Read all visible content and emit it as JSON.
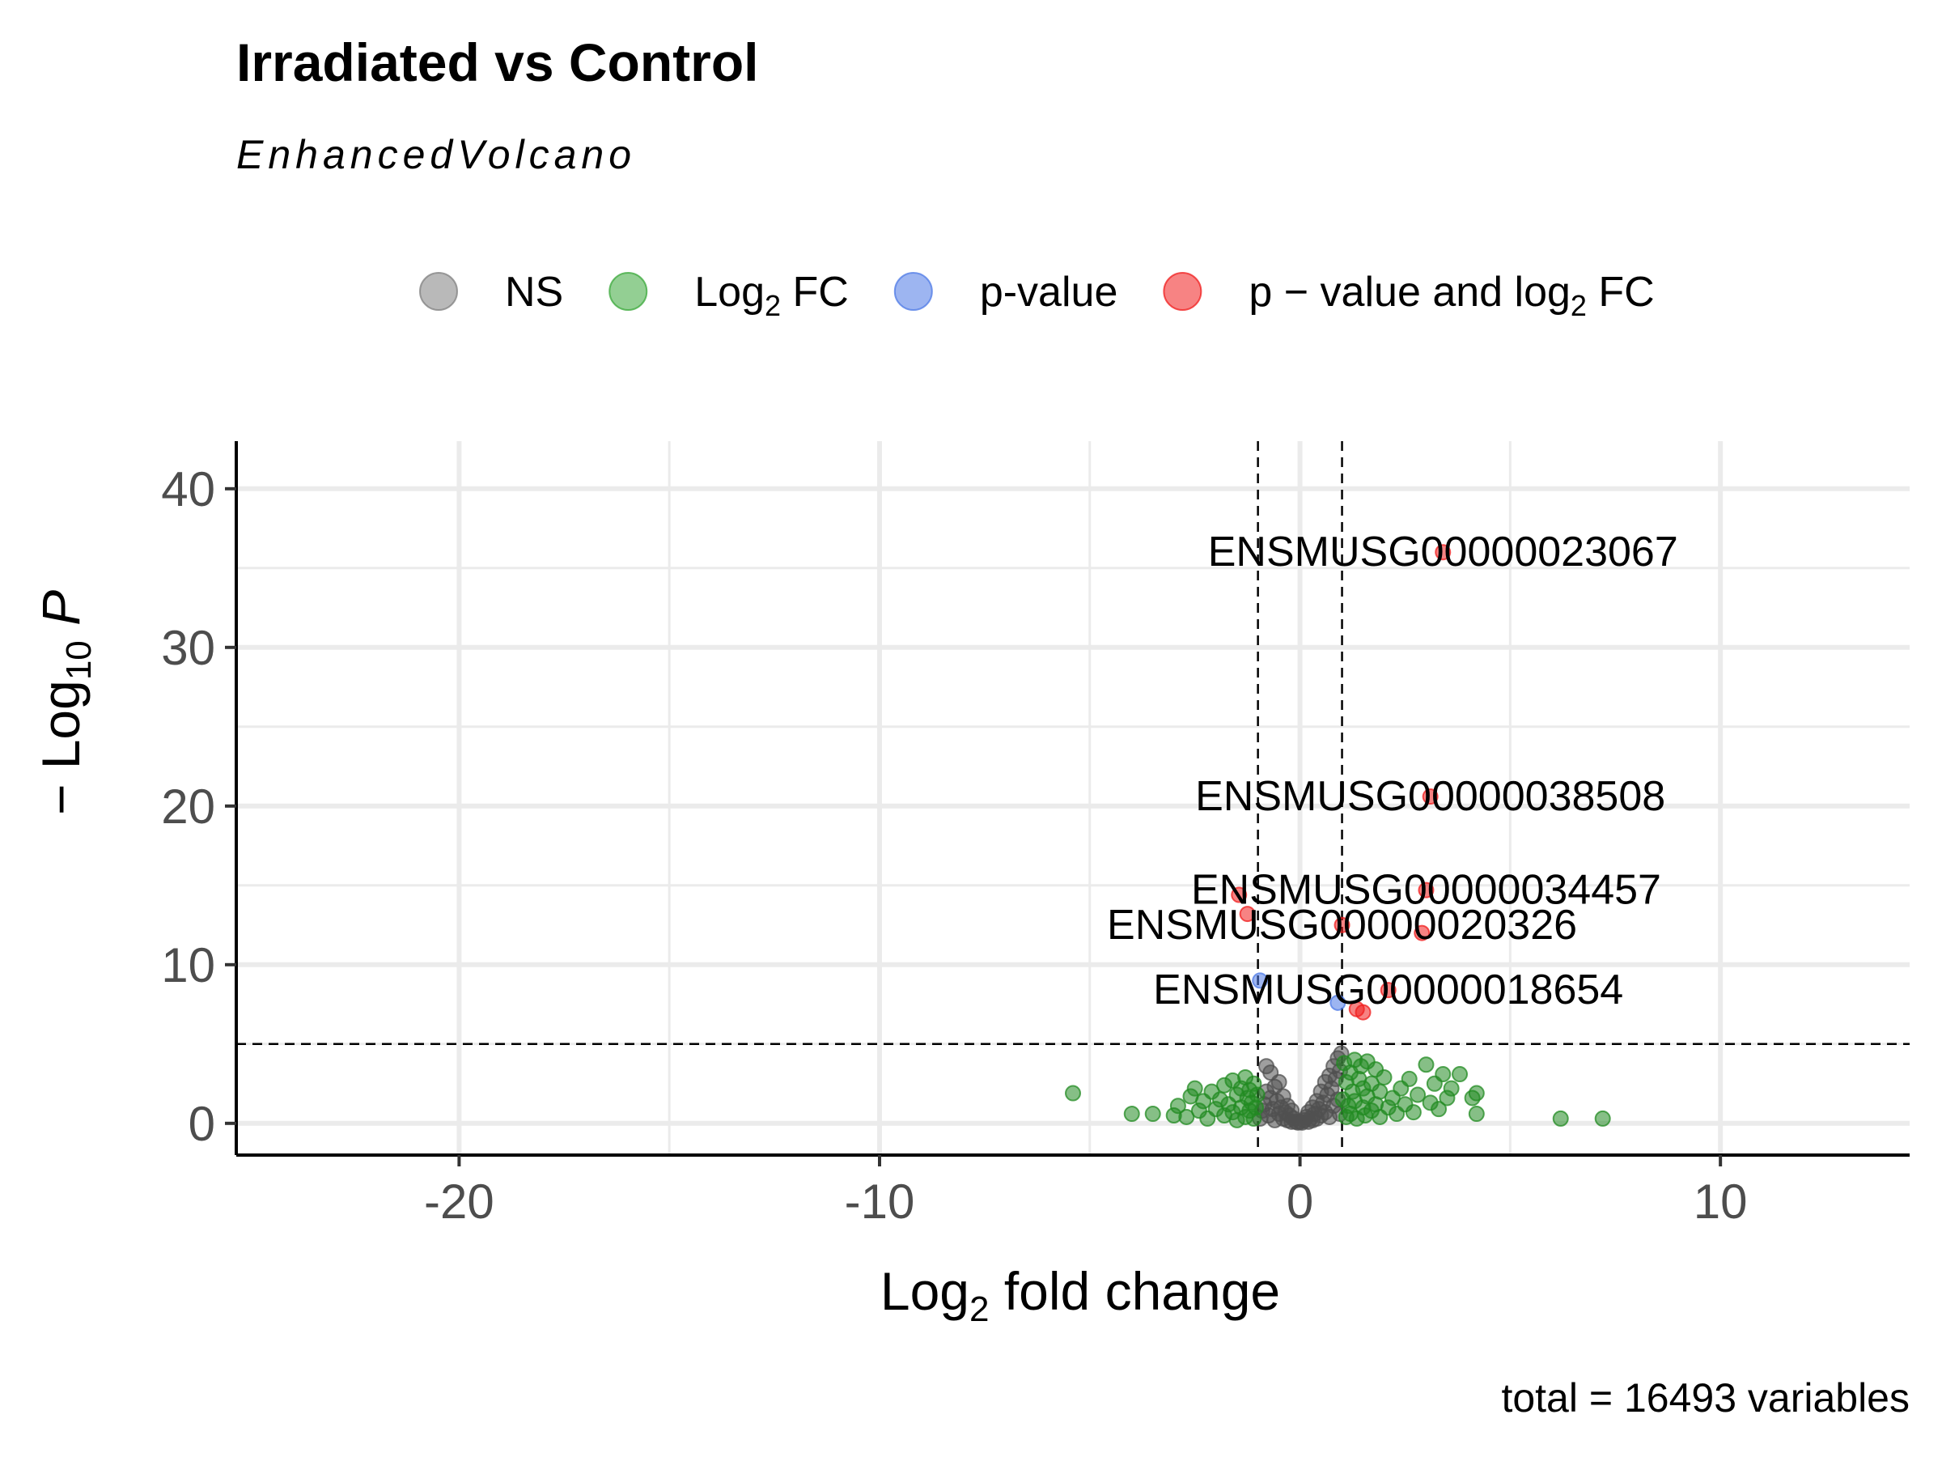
{
  "chart_data": {
    "type": "scatter",
    "title": "Irradiated vs Control",
    "subtitle": "EnhancedVolcano",
    "caption": "total = 16493 variables",
    "xlabel": {
      "base": "Log",
      "sub": "2",
      "rest": " fold change"
    },
    "ylabel": {
      "prefix": "− Log",
      "sub": "10",
      "italic": "P"
    },
    "xlim": [
      -25.3,
      14.5
    ],
    "ylim": [
      -2,
      43
    ],
    "x_ticks": [
      -20,
      -10,
      0,
      10
    ],
    "x_tick_labels": [
      "-20",
      "-10",
      "0",
      "10"
    ],
    "y_ticks": [
      0,
      10,
      20,
      30,
      40
    ],
    "y_tick_labels": [
      "0",
      "10",
      "20",
      "30",
      "40"
    ],
    "grid": true,
    "fc_cutoff": [
      -1,
      1
    ],
    "p_cutoff_neglog10": 5,
    "legend_position": "top",
    "legend": [
      {
        "key": "NS",
        "color": "#808080",
        "parts": [
          {
            "t": "NS"
          }
        ]
      },
      {
        "key": "log2fc",
        "color": "#3aa83a",
        "parts": [
          {
            "t": "Log"
          },
          {
            "t": "2",
            "sub": true
          },
          {
            "t": " FC"
          }
        ]
      },
      {
        "key": "pvalue",
        "color": "#4d79e6",
        "parts": [
          {
            "t": "p-value"
          }
        ]
      },
      {
        "key": "both",
        "color": "#f01e1e",
        "parts": [
          {
            "t": "p − value and log"
          },
          {
            "t": "2",
            "sub": true
          },
          {
            "t": " FC"
          }
        ]
      }
    ],
    "series": [
      {
        "name": "NS",
        "color": "#505050",
        "points": [
          [
            -0.95,
            0.3
          ],
          [
            -0.9,
            0.8
          ],
          [
            -0.85,
            1.2
          ],
          [
            -0.8,
            2.0
          ],
          [
            -0.8,
            3.6
          ],
          [
            -0.75,
            0.5
          ],
          [
            -0.7,
            1.6
          ],
          [
            -0.7,
            3.2
          ],
          [
            -0.65,
            0.9
          ],
          [
            -0.6,
            2.3
          ],
          [
            -0.6,
            0.2
          ],
          [
            -0.55,
            1.4
          ],
          [
            -0.5,
            0.6
          ],
          [
            -0.5,
            2.6
          ],
          [
            -0.45,
            1.0
          ],
          [
            -0.4,
            0.3
          ],
          [
            -0.4,
            1.7
          ],
          [
            -0.35,
            0.7
          ],
          [
            -0.3,
            0.2
          ],
          [
            -0.3,
            1.1
          ],
          [
            -0.25,
            0.5
          ],
          [
            -0.2,
            0.1
          ],
          [
            -0.2,
            0.8
          ],
          [
            -0.15,
            0.3
          ],
          [
            -0.1,
            0.1
          ],
          [
            -0.05,
            0.05
          ],
          [
            0.0,
            0.1
          ],
          [
            0.05,
            0.05
          ],
          [
            0.1,
            0.2
          ],
          [
            0.15,
            0.4
          ],
          [
            0.2,
            0.1
          ],
          [
            0.2,
            0.7
          ],
          [
            0.25,
            0.3
          ],
          [
            0.3,
            1.0
          ],
          [
            0.3,
            0.2
          ],
          [
            0.35,
            0.6
          ],
          [
            0.4,
            1.4
          ],
          [
            0.4,
            0.3
          ],
          [
            0.45,
            0.9
          ],
          [
            0.5,
            2.0
          ],
          [
            0.5,
            0.5
          ],
          [
            0.55,
            1.3
          ],
          [
            0.6,
            2.6
          ],
          [
            0.6,
            0.7
          ],
          [
            0.65,
            1.8
          ],
          [
            0.7,
            3.0
          ],
          [
            0.7,
            0.4
          ],
          [
            0.75,
            2.2
          ],
          [
            0.8,
            3.6
          ],
          [
            0.8,
            1.1
          ],
          [
            0.85,
            2.8
          ],
          [
            0.9,
            4.1
          ],
          [
            0.9,
            1.5
          ],
          [
            0.95,
            3.3
          ],
          [
            0.95,
            0.6
          ],
          [
            0.98,
            4.4
          ]
        ]
      },
      {
        "name": "Log2 FC",
        "color": "#228b22",
        "points": [
          [
            -5.4,
            1.9
          ],
          [
            -4.0,
            0.6
          ],
          [
            -3.5,
            0.6
          ],
          [
            -3.0,
            0.5
          ],
          [
            -2.9,
            1.1
          ],
          [
            -2.7,
            0.4
          ],
          [
            -2.6,
            1.7
          ],
          [
            -2.5,
            2.2
          ],
          [
            -2.4,
            0.8
          ],
          [
            -2.3,
            1.4
          ],
          [
            -2.2,
            0.3
          ],
          [
            -2.1,
            2.0
          ],
          [
            -2.0,
            0.9
          ],
          [
            -1.9,
            1.5
          ],
          [
            -1.8,
            2.4
          ],
          [
            -1.8,
            0.5
          ],
          [
            -1.7,
            1.2
          ],
          [
            -1.6,
            2.7
          ],
          [
            -1.6,
            0.7
          ],
          [
            -1.5,
            1.8
          ],
          [
            -1.5,
            0.2
          ],
          [
            -1.4,
            2.2
          ],
          [
            -1.4,
            1.0
          ],
          [
            -1.3,
            0.4
          ],
          [
            -1.3,
            2.9
          ],
          [
            -1.25,
            1.6
          ],
          [
            -1.2,
            0.8
          ],
          [
            -1.2,
            2.1
          ],
          [
            -1.15,
            1.3
          ],
          [
            -1.1,
            0.3
          ],
          [
            -1.1,
            2.5
          ],
          [
            -1.05,
            1.0
          ],
          [
            -1.02,
            1.8
          ],
          [
            1.02,
            1.5
          ],
          [
            1.05,
            3.8
          ],
          [
            1.1,
            0.4
          ],
          [
            1.1,
            2.6
          ],
          [
            1.15,
            1.1
          ],
          [
            1.2,
            3.2
          ],
          [
            1.2,
            0.6
          ],
          [
            1.25,
            2.0
          ],
          [
            1.3,
            4.0
          ],
          [
            1.3,
            1.4
          ],
          [
            1.35,
            0.3
          ],
          [
            1.4,
            2.8
          ],
          [
            1.45,
            3.6
          ],
          [
            1.5,
            1.0
          ],
          [
            1.5,
            2.2
          ],
          [
            1.55,
            0.5
          ],
          [
            1.6,
            3.9
          ],
          [
            1.6,
            1.7
          ],
          [
            1.7,
            2.5
          ],
          [
            1.7,
            0.8
          ],
          [
            1.8,
            3.4
          ],
          [
            1.8,
            1.2
          ],
          [
            1.9,
            0.4
          ],
          [
            1.9,
            2.0
          ],
          [
            2.0,
            2.9
          ],
          [
            2.1,
            1.0
          ],
          [
            2.2,
            1.6
          ],
          [
            2.3,
            0.6
          ],
          [
            2.4,
            2.2
          ],
          [
            2.5,
            1.2
          ],
          [
            2.6,
            2.8
          ],
          [
            2.7,
            0.7
          ],
          [
            2.8,
            1.8
          ],
          [
            3.0,
            3.7
          ],
          [
            3.1,
            1.3
          ],
          [
            3.2,
            2.5
          ],
          [
            3.3,
            0.9
          ],
          [
            3.4,
            3.1
          ],
          [
            3.5,
            1.6
          ],
          [
            3.6,
            2.2
          ],
          [
            3.8,
            3.1
          ],
          [
            4.1,
            1.6
          ],
          [
            4.2,
            1.9
          ],
          [
            4.2,
            0.6
          ],
          [
            6.2,
            0.3
          ],
          [
            7.2,
            0.3
          ]
        ]
      },
      {
        "name": "p-value",
        "color": "#4d79e6",
        "points": [
          [
            -0.95,
            9.0
          ],
          [
            0.9,
            7.6
          ]
        ]
      },
      {
        "name": "p - value and log2 FC",
        "color": "#f01e1e",
        "points": [
          [
            3.4,
            36.0
          ],
          [
            3.1,
            20.6
          ],
          [
            3.0,
            14.7
          ],
          [
            -1.45,
            14.4
          ],
          [
            -1.25,
            13.2
          ],
          [
            1.0,
            12.5
          ],
          [
            2.9,
            12.0
          ],
          [
            2.1,
            8.4
          ],
          [
            1.35,
            7.2
          ],
          [
            1.5,
            7.0
          ]
        ]
      }
    ],
    "annotations": [
      {
        "text": "ENSMUSG00000023067",
        "x": 3.4,
        "y": 36.0
      },
      {
        "text": "ENSMUSG00000038508",
        "x": 3.1,
        "y": 20.6
      },
      {
        "text": "ENSMUSG00000034457",
        "x": 3.0,
        "y": 14.7
      },
      {
        "text": "ENSMUSG00000020326",
        "x": 1.0,
        "y": 12.5
      },
      {
        "text": "ENSMUSG00000018654",
        "x": 2.1,
        "y": 8.4
      }
    ]
  }
}
